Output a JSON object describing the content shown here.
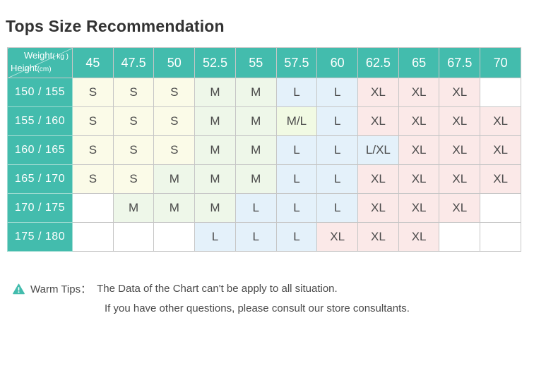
{
  "title": "Tops Size Recommendation",
  "colors": {
    "header_bg": "#43BCAD",
    "header_text": "#FFFFFF",
    "grid_border": "#C6C6C6",
    "title_text": "#333333",
    "body_text": "#4A4A4A",
    "warn_icon": "#43BCAD"
  },
  "size_colors": {
    "S": "#FBFBE8",
    "M": "#EEF7E9",
    "M/L": "#F1FAE3",
    "L": "#E4F1FA",
    "L/XL": "#E4F1FA",
    "XL": "#FBE9E8",
    "": "#FFFFFF"
  },
  "chart_data": {
    "type": "table",
    "title": "Tops Size Recommendation",
    "corner": {
      "weight_label": "Weight",
      "weight_unit": "( kg )",
      "height_label": "Height",
      "height_unit": "(cm)"
    },
    "columns": [
      "45",
      "47.5",
      "50",
      "52.5",
      "55",
      "57.5",
      "60",
      "62.5",
      "65",
      "67.5",
      "70"
    ],
    "rows": [
      {
        "height": "150 / 155",
        "cells": [
          "S",
          "S",
          "S",
          "M",
          "M",
          "L",
          "L",
          "XL",
          "XL",
          "XL",
          ""
        ]
      },
      {
        "height": "155 / 160",
        "cells": [
          "S",
          "S",
          "S",
          "M",
          "M",
          "M/L",
          "L",
          "XL",
          "XL",
          "XL",
          "XL"
        ]
      },
      {
        "height": "160 / 165",
        "cells": [
          "S",
          "S",
          "S",
          "M",
          "M",
          "L",
          "L",
          "L/XL",
          "XL",
          "XL",
          "XL"
        ]
      },
      {
        "height": "165 / 170",
        "cells": [
          "S",
          "S",
          "M",
          "M",
          "M",
          "L",
          "L",
          "XL",
          "XL",
          "XL",
          "XL"
        ]
      },
      {
        "height": "170 / 175",
        "cells": [
          "",
          "M",
          "M",
          "M",
          "L",
          "L",
          "L",
          "XL",
          "XL",
          "XL",
          ""
        ]
      },
      {
        "height": "175 / 180",
        "cells": [
          "",
          "",
          "",
          "L",
          "L",
          "L",
          "XL",
          "XL",
          "XL",
          "",
          ""
        ]
      }
    ]
  },
  "tips": {
    "label": "Warm Tips：",
    "line1": "The Data of the Chart can't be apply to all situation.",
    "line2": "If you have other questions, please consult our store consultants."
  }
}
